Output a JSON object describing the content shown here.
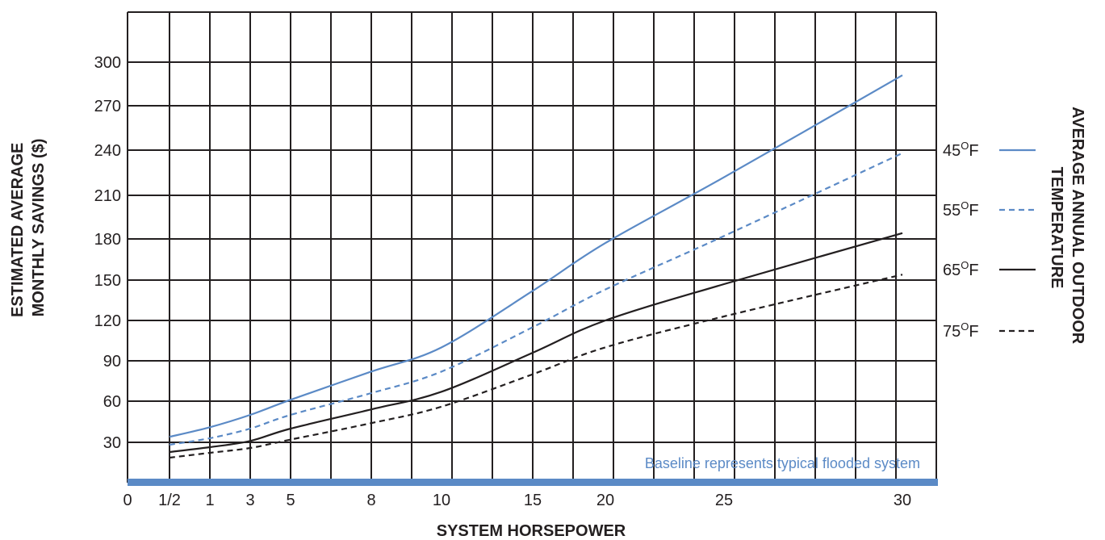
{
  "chart_data": {
    "type": "line",
    "xlabel": "SYSTEM HORSEPOWER",
    "ylabel_lines": [
      "ESTIMATED AVERAGE",
      "MONTHLY SAVINGS ($)"
    ],
    "right_label_lines": [
      "AVERAGE ANNUAL OUTDOOR",
      "TEMPERATURE"
    ],
    "note": "Baseline represents typical flooded system",
    "x_ticks": [
      "0",
      "1/2",
      "1",
      "3",
      "5",
      "8",
      "10",
      "15",
      "20",
      "25",
      "30"
    ],
    "y_ticks": [
      "30",
      "60",
      "90",
      "120",
      "150",
      "180",
      "210",
      "240",
      "270",
      "300"
    ],
    "grid": true,
    "legend_placement": "right",
    "baseline_color": "#5b8ac6",
    "series": [
      {
        "name": "45",
        "unit": "F",
        "color": "#5b8ac6",
        "style": "solid",
        "points": [
          [
            0.5,
            34
          ],
          [
            1,
            41
          ],
          [
            3,
            50
          ],
          [
            5,
            61
          ],
          [
            8,
            82
          ],
          [
            10,
            100
          ],
          [
            15,
            142
          ],
          [
            20,
            177
          ],
          [
            25,
            222
          ],
          [
            30,
            291
          ]
        ]
      },
      {
        "name": "55",
        "unit": "F",
        "color": "#5b8ac6",
        "style": "dashed",
        "points": [
          [
            0.5,
            27
          ],
          [
            1,
            33
          ],
          [
            3,
            40
          ],
          [
            5,
            50
          ],
          [
            8,
            66
          ],
          [
            10,
            82
          ],
          [
            15,
            115
          ],
          [
            20,
            143
          ],
          [
            25,
            182
          ],
          [
            30,
            238
          ]
        ]
      },
      {
        "name": "65",
        "unit": "F",
        "color": "#231f20",
        "style": "solid",
        "points": [
          [
            0.5,
            18
          ],
          [
            1,
            24
          ],
          [
            3,
            31
          ],
          [
            5,
            40
          ],
          [
            8,
            54
          ],
          [
            10,
            67
          ],
          [
            15,
            96
          ],
          [
            20,
            120
          ],
          [
            25,
            147
          ],
          [
            30,
            184
          ]
        ]
      },
      {
        "name": "75",
        "unit": "F",
        "color": "#231f20",
        "style": "dashed",
        "points": [
          [
            0.5,
            11
          ],
          [
            1,
            17
          ],
          [
            3,
            23
          ],
          [
            5,
            32
          ],
          [
            8,
            44
          ],
          [
            10,
            56
          ],
          [
            15,
            80
          ],
          [
            20,
            100
          ],
          [
            25,
            123
          ],
          [
            30,
            154
          ]
        ]
      }
    ]
  }
}
